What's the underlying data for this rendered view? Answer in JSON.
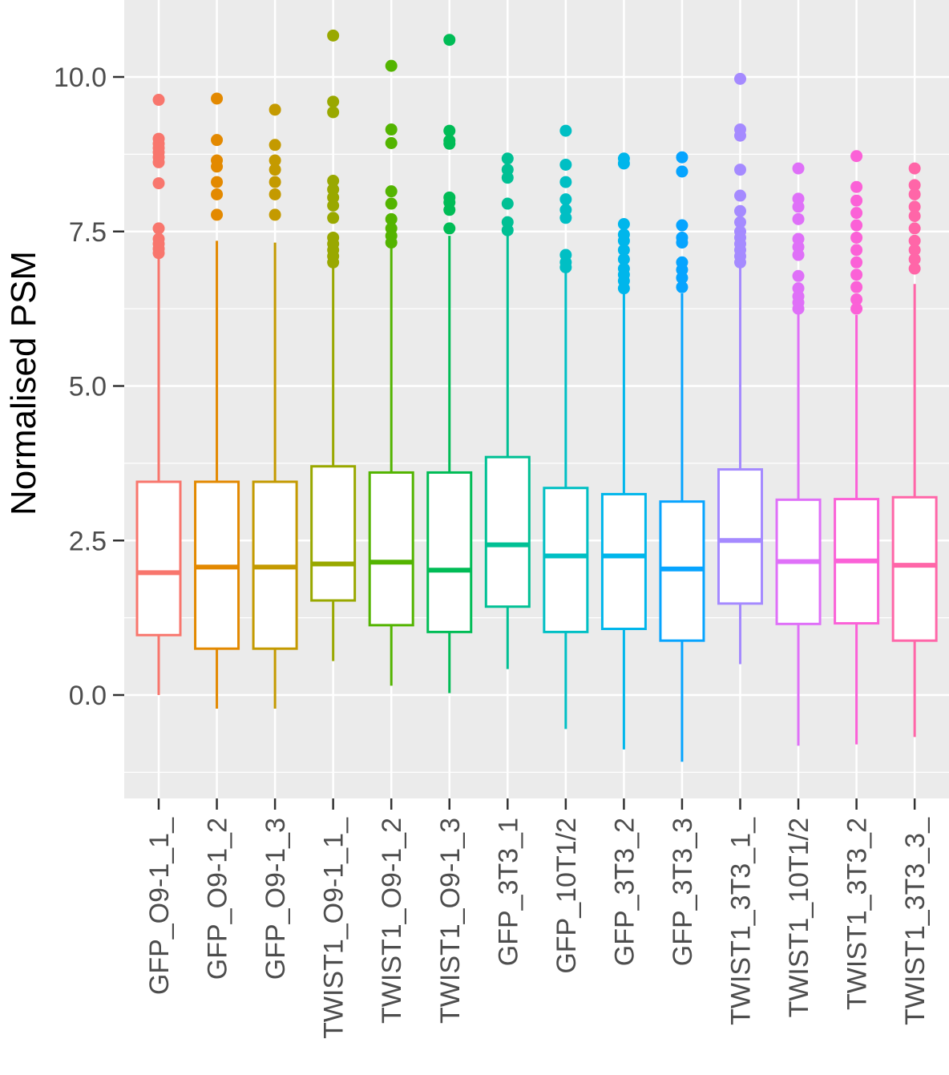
{
  "chart_data": {
    "type": "box",
    "title": "",
    "xlabel": "",
    "ylabel": "Normalised PSM",
    "ylim": [
      -1.6,
      11.3
    ],
    "yticks": [
      0.0,
      2.5,
      5.0,
      7.5,
      10.0
    ],
    "ytick_labels": [
      "0.0",
      "2.5",
      "5.0",
      "7.5",
      "10.0"
    ],
    "yminor": [
      -1.25,
      1.25,
      3.75,
      6.25,
      8.75
    ],
    "grid": true,
    "legend": "none",
    "categories": [
      "GFP_O9-1_1",
      "GFP_O9-1_2",
      "GFP_O9-1_3",
      "TWIST1_O9-1_1",
      "TWIST1_O9-1_2",
      "TWIST1_O9-1_3",
      "GFP_3T3_1",
      "GFP_10T1/2",
      "GFP_3T3_2",
      "GFP_3T3_3",
      "TWIST1_3T3_1",
      "TWIST1_10T1/2",
      "TWIST1_3T3_2",
      "TWIST1_3T3_3"
    ],
    "category_labels": [
      "GFP_O9-1_1_",
      "GFP_O9-1_2",
      "GFP_O9-1_3",
      "TWIST1_O9-1_1_",
      "TWIST1_O9-1_2",
      "TWIST1_O9-1_3",
      "GFP_3T3_1",
      "GFP_10T1/2",
      "GFP_3T3_2",
      "GFP_3T3_3",
      "TWIST1_3T3_1_",
      "TWIST1_10T1/2",
      "TWIST1_3T3_2",
      "TWIST1_3T3_3_"
    ],
    "colors": [
      "#F8766D",
      "#E38900",
      "#C49A00",
      "#99A800",
      "#53B400",
      "#00BC56",
      "#00C094",
      "#00BFC4",
      "#00B6EB",
      "#06A4FF",
      "#A58AFF",
      "#DF70F8",
      "#FB61D7",
      "#FF66A8"
    ],
    "boxes": [
      {
        "whisker_low": 0.0,
        "q1": 0.97,
        "median": 1.98,
        "q3": 3.45,
        "whisker_high": 7.1,
        "outliers": [
          9.63,
          9.0,
          8.92,
          8.85,
          8.78,
          8.7,
          8.62,
          8.28,
          7.55,
          7.38,
          7.3,
          7.22,
          7.15
        ]
      },
      {
        "whisker_low": -0.22,
        "q1": 0.75,
        "median": 2.07,
        "q3": 3.45,
        "whisker_high": 7.35,
        "outliers": [
          9.65,
          8.98,
          8.65,
          8.55,
          8.3,
          8.1,
          7.77
        ]
      },
      {
        "whisker_low": -0.22,
        "q1": 0.75,
        "median": 2.07,
        "q3": 3.45,
        "whisker_high": 7.32,
        "outliers": [
          9.47,
          8.9,
          8.65,
          8.5,
          8.3,
          8.1,
          7.77
        ]
      },
      {
        "whisker_low": 0.55,
        "q1": 1.53,
        "median": 2.12,
        "q3": 3.7,
        "whisker_high": 6.95,
        "outliers": [
          10.67,
          9.6,
          9.43,
          8.32,
          8.18,
          8.05,
          7.92,
          7.72,
          7.4,
          7.3,
          7.2,
          7.1,
          7.0
        ]
      },
      {
        "whisker_low": 0.15,
        "q1": 1.13,
        "median": 2.15,
        "q3": 3.6,
        "whisker_high": 7.28,
        "outliers": [
          10.18,
          9.15,
          8.93,
          8.15,
          7.95,
          7.7,
          7.55,
          7.43,
          7.32
        ]
      },
      {
        "whisker_low": 0.03,
        "q1": 1.02,
        "median": 2.02,
        "q3": 3.6,
        "whisker_high": 7.43,
        "outliers": [
          10.6,
          9.13,
          8.97,
          8.92,
          8.05,
          7.97,
          7.85,
          7.55
        ]
      },
      {
        "whisker_low": 0.42,
        "q1": 1.43,
        "median": 2.43,
        "q3": 3.85,
        "whisker_high": 7.45,
        "outliers": [
          8.68,
          8.5,
          8.37,
          7.95,
          7.65,
          7.52
        ]
      },
      {
        "whisker_low": -0.55,
        "q1": 1.02,
        "median": 2.25,
        "q3": 3.35,
        "whisker_high": 6.88,
        "outliers": [
          9.13,
          8.58,
          8.3,
          8.02,
          7.85,
          7.72,
          7.12,
          7.0,
          6.92
        ]
      },
      {
        "whisker_low": -0.88,
        "q1": 1.07,
        "median": 2.25,
        "q3": 3.25,
        "whisker_high": 6.52,
        "outliers": [
          8.68,
          8.6,
          7.62,
          7.45,
          7.35,
          7.2,
          7.05,
          6.9,
          6.8,
          6.7,
          6.58
        ]
      },
      {
        "whisker_low": -1.08,
        "q1": 0.88,
        "median": 2.04,
        "q3": 3.13,
        "whisker_high": 6.5,
        "outliers": [
          8.7,
          8.47,
          7.6,
          7.4,
          7.32,
          7.0,
          6.88,
          6.75,
          6.6
        ]
      },
      {
        "whisker_low": 0.5,
        "q1": 1.48,
        "median": 2.5,
        "q3": 3.65,
        "whisker_high": 6.98,
        "outliers": [
          9.97,
          9.15,
          9.05,
          8.5,
          8.08,
          7.83,
          7.65,
          7.5,
          7.4,
          7.3,
          7.2,
          7.1,
          7.0
        ]
      },
      {
        "whisker_low": -0.82,
        "q1": 1.15,
        "median": 2.16,
        "q3": 3.16,
        "whisker_high": 6.18,
        "outliers": [
          8.52,
          8.03,
          7.9,
          7.7,
          7.38,
          7.25,
          7.12,
          6.78,
          6.58,
          6.45,
          6.35,
          6.25
        ]
      },
      {
        "whisker_low": -0.8,
        "q1": 1.16,
        "median": 2.17,
        "q3": 3.17,
        "whisker_high": 6.15,
        "outliers": [
          8.72,
          8.22,
          8.0,
          7.8,
          7.6,
          7.4,
          7.2,
          7.0,
          6.8,
          6.6,
          6.4,
          6.25
        ]
      },
      {
        "whisker_low": -0.68,
        "q1": 0.88,
        "median": 2.1,
        "q3": 3.2,
        "whisker_high": 6.65,
        "outliers": [
          8.52,
          8.25,
          8.1,
          7.9,
          7.75,
          7.55,
          7.35,
          7.2,
          7.05,
          6.9
        ]
      }
    ]
  }
}
